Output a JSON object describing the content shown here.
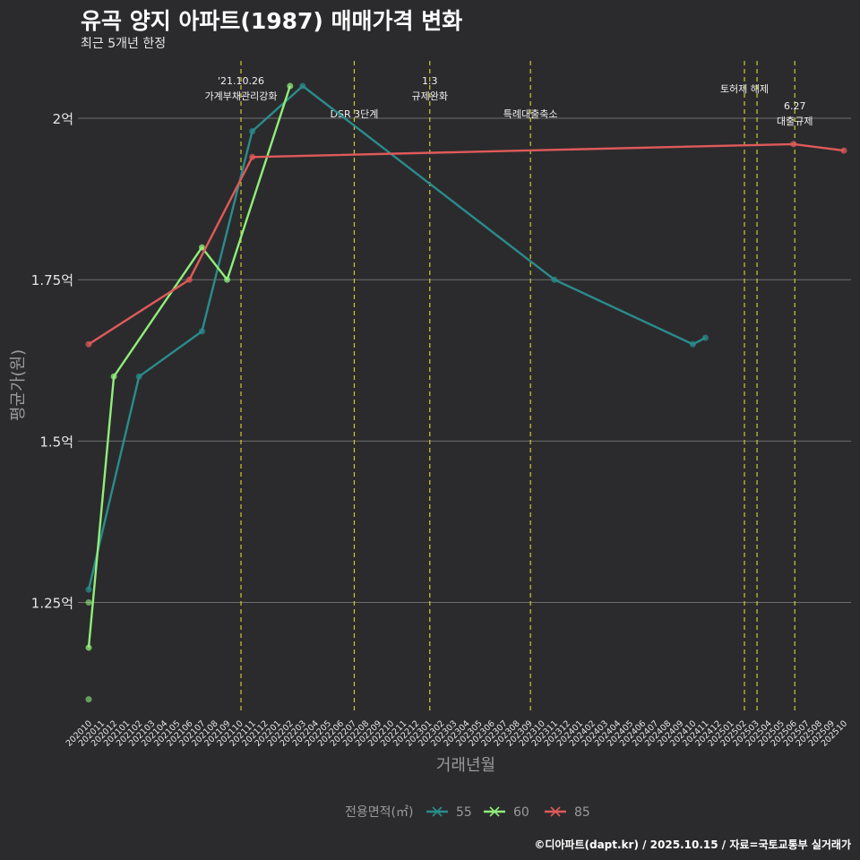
{
  "title": "유곡 양지 아파트(1987) 매매가격 변화",
  "subtitle": "최근 5개년 한정",
  "caption": "©디아파트(dapt.kr) / 2025.10.15 / 자료=국토교통부 실거래가",
  "colors": {
    "background": "#2b2b2d",
    "grid": "#6e6e6e",
    "event_line": "#cccc33",
    "series_55": "#2a8c8c",
    "series_60": "#90ee7a",
    "series_85": "#e05a5a"
  },
  "chart_data": {
    "type": "line",
    "title": "유곡 양지 아파트(1987) 매매가격 변화",
    "subtitle": "최근 5개년 한정",
    "xlabel": "거래년월",
    "ylabel": "평균가(원)",
    "ylim": [
      1.08,
      2.1
    ],
    "yticks": [
      {
        "value": 1.25,
        "label": "1.25억"
      },
      {
        "value": 1.5,
        "label": "1.5억"
      },
      {
        "value": 1.75,
        "label": "1.75억"
      },
      {
        "value": 2.0,
        "label": "2억"
      }
    ],
    "months": [
      "202010",
      "202011",
      "202012",
      "202101",
      "202102",
      "202103",
      "202104",
      "202105",
      "202106",
      "202107",
      "202108",
      "202109",
      "202110",
      "202111",
      "202112",
      "202201",
      "202202",
      "202203",
      "202204",
      "202205",
      "202206",
      "202207",
      "202208",
      "202209",
      "202210",
      "202211",
      "202212",
      "202301",
      "202302",
      "202303",
      "202304",
      "202305",
      "202306",
      "202307",
      "202308",
      "202309",
      "202310",
      "202311",
      "202312",
      "202401",
      "202402",
      "202403",
      "202404",
      "202405",
      "202406",
      "202407",
      "202408",
      "202409",
      "202410",
      "202411",
      "202412",
      "202501",
      "202502",
      "202503",
      "202504",
      "202505",
      "202506",
      "202507",
      "202508",
      "202509",
      "202510"
    ],
    "legend_title": "전용면적(㎡)",
    "legend_position": "bottom",
    "series": [
      {
        "name": "55",
        "color_key": "series_55",
        "points": [
          [
            0,
            1.27
          ],
          [
            4,
            1.6
          ],
          [
            9,
            1.67
          ],
          [
            13,
            1.98
          ],
          [
            17,
            2.05
          ],
          [
            37,
            1.75
          ],
          [
            48,
            1.65
          ],
          [
            49,
            1.66
          ]
        ]
      },
      {
        "name": "60",
        "color_key": "series_60",
        "points": [
          [
            0,
            1.18
          ],
          [
            2,
            1.6
          ],
          [
            9,
            1.8
          ],
          [
            11,
            1.75
          ],
          [
            16,
            2.05
          ]
        ],
        "extra_points": [
          [
            0,
            1.25
          ],
          [
            0,
            1.1
          ]
        ]
      },
      {
        "name": "85",
        "color_key": "series_85",
        "points": [
          [
            0,
            1.65
          ],
          [
            8,
            1.75
          ],
          [
            13,
            1.94
          ],
          [
            56,
            1.96
          ],
          [
            60,
            1.95
          ]
        ]
      }
    ],
    "events": [
      {
        "month_index": 12.1,
        "lines": [
          "'21.10.26",
          "가계부채관리강화"
        ],
        "label_row": 0
      },
      {
        "month_index": 21.1,
        "lines": [
          "DSR 3단계"
        ],
        "label_row": 2
      },
      {
        "month_index": 27.1,
        "lines": [
          "1.3",
          "규제완화"
        ],
        "label_row": 0
      },
      {
        "month_index": 35.1,
        "lines": [
          "특례대출축소"
        ],
        "label_row": 2
      },
      {
        "month_index": 52.1,
        "lines": [
          "토허제 해제"
        ],
        "label_row": 1
      },
      {
        "month_index": 53.1,
        "lines": [],
        "label_row": 0
      },
      {
        "month_index": 56.1,
        "lines": [
          "6.27",
          "대출규제"
        ],
        "label_row": 2
      }
    ]
  }
}
